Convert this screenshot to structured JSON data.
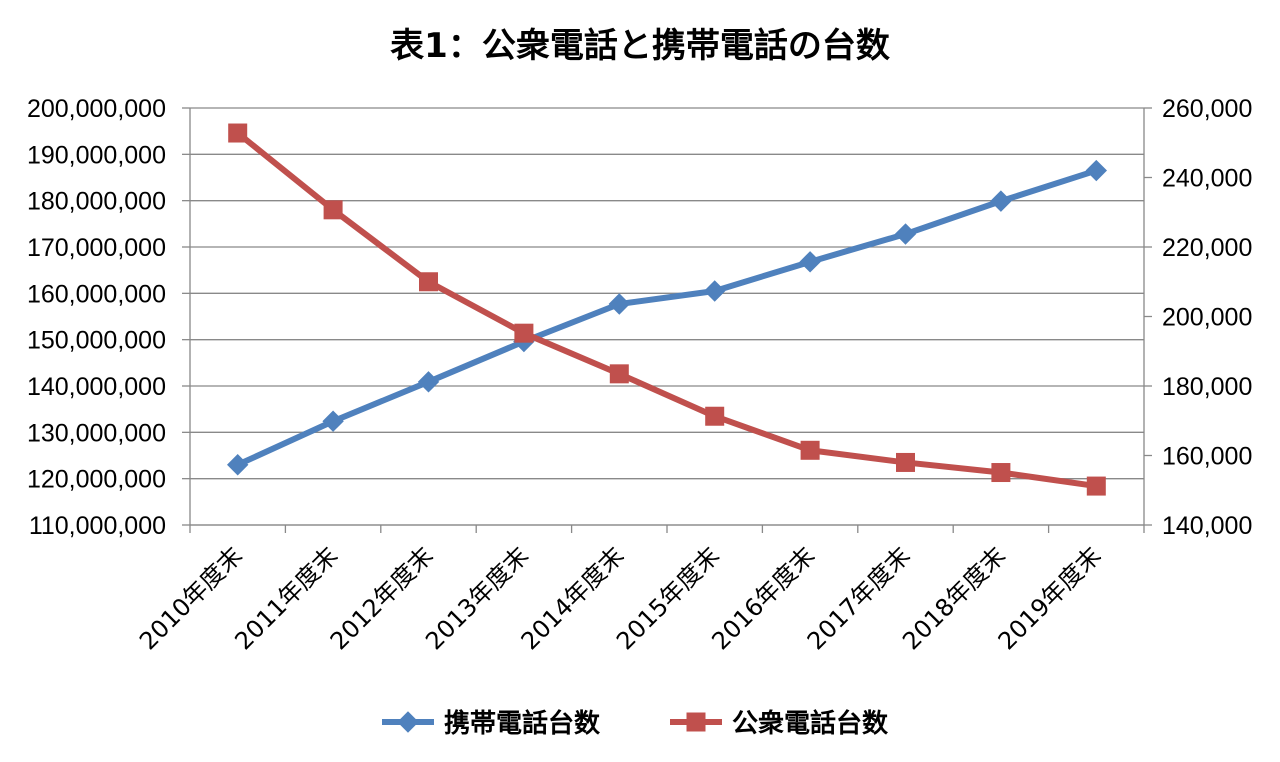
{
  "chart_data": {
    "type": "line",
    "title": "表1：公衆電話と携帯電話の台数",
    "categories": [
      "2010年度末",
      "2011年度末",
      "2012年度末",
      "2013年度末",
      "2014年度末",
      "2015年度末",
      "2016年度末",
      "2017年度末",
      "2018年度末",
      "2019年度末"
    ],
    "y_left": {
      "ylim": [
        110000000,
        200000000
      ],
      "ticks": [
        "110,000,000",
        "120,000,000",
        "130,000,000",
        "140,000,000",
        "150,000,000",
        "160,000,000",
        "170,000,000",
        "180,000,000",
        "190,000,000",
        "200,000,000"
      ]
    },
    "y_right": {
      "ylim": [
        140000,
        260000
      ],
      "ticks": [
        "140,000",
        "160,000",
        "180,000",
        "200,000",
        "220,000",
        "240,000",
        "260,000"
      ]
    },
    "series": [
      {
        "name": "携帯電話台数",
        "axis": "left",
        "marker": "diamond",
        "color": "#4F81BD",
        "values": [
          123000000,
          132400000,
          140900000,
          149600000,
          157700000,
          160500000,
          166800000,
          172800000,
          179900000,
          186500000
        ]
      },
      {
        "name": "公衆電話台数",
        "axis": "right",
        "marker": "square",
        "color": "#C0504D",
        "values": [
          252800,
          230700,
          210000,
          195200,
          183500,
          171300,
          161500,
          158000,
          155100,
          151200
        ]
      }
    ],
    "grid": true,
    "legend_position": "bottom"
  }
}
